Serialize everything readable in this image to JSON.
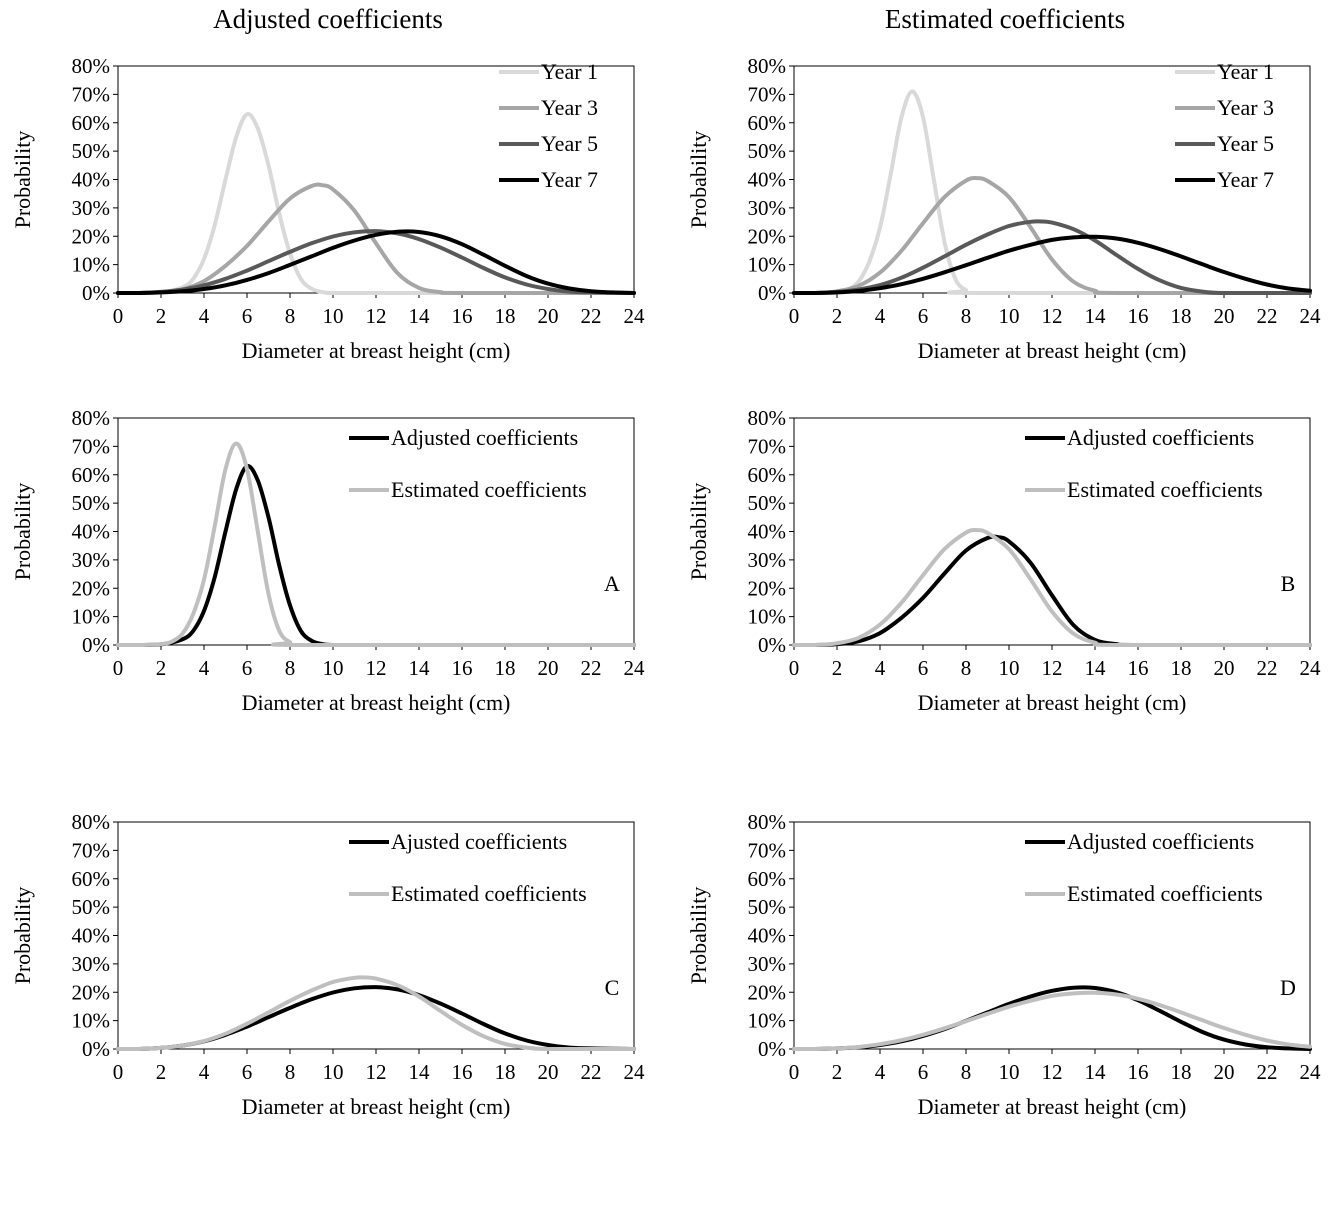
{
  "column_titles": [
    "Adjusted coefficients",
    "Estimated coefficients"
  ],
  "colors": {
    "year1": "#d9d9d9",
    "year3": "#a6a6a6",
    "year5": "#595959",
    "year7": "#000000",
    "adjusted": "#000000",
    "estimated": "#bfbfbf"
  },
  "chart_data": [
    {
      "type": "line",
      "panel": "top-left",
      "xlabel": "Diameter at breast height (cm)",
      "ylabel": "Probability",
      "xlim": [
        0,
        24
      ],
      "ylim": [
        0,
        80
      ],
      "xticks": [
        "0",
        "2",
        "4",
        "6",
        "8",
        "10",
        "12",
        "14",
        "16",
        "18",
        "20",
        "22",
        "24"
      ],
      "yticks": [
        "0%",
        "10%",
        "20%",
        "30%",
        "40%",
        "50%",
        "60%",
        "70%",
        "80%"
      ],
      "legend_position": "top-right",
      "corner_label": "",
      "series": [
        {
          "name": "Year 1",
          "color_key": "year1",
          "x": [
            0,
            1,
            2,
            3,
            3.5,
            4,
            4.5,
            5,
            5.5,
            6,
            6.5,
            7,
            7.5,
            8,
            8.5,
            9,
            9.5,
            10,
            11,
            24
          ],
          "y": [
            0,
            0,
            0.2,
            2,
            5,
            12,
            24,
            40,
            55,
            63,
            58,
            45,
            28,
            14,
            5,
            1.5,
            0.3,
            0,
            0,
            0
          ]
        },
        {
          "name": "Year 3",
          "color_key": "year3",
          "x": [
            0,
            1,
            2,
            3,
            4,
            5,
            6,
            7,
            8,
            9,
            9.5,
            10,
            11,
            12,
            13,
            14,
            15,
            16,
            24
          ],
          "y": [
            0,
            0,
            0.3,
            1.3,
            4.2,
            9.6,
            16.6,
            25.2,
            33.3,
            37.7,
            38,
            36.5,
            29,
            17.5,
            7,
            1.8,
            0.3,
            0,
            0
          ]
        },
        {
          "name": "Year 5",
          "color_key": "year5",
          "x": [
            0,
            1,
            2,
            3,
            4,
            5,
            6,
            7,
            8,
            9,
            10,
            11,
            12,
            13,
            14,
            15,
            16,
            17,
            18,
            19,
            20,
            21,
            22,
            24
          ],
          "y": [
            0,
            0,
            0.4,
            1.2,
            2.7,
            5,
            7.9,
            11.2,
            14.5,
            17.5,
            19.9,
            21.4,
            21.8,
            21,
            19,
            16,
            12.5,
            8.8,
            5.5,
            3,
            1.4,
            0.5,
            0.2,
            0
          ]
        },
        {
          "name": "Year 7",
          "color_key": "year7",
          "x": [
            0,
            1,
            2,
            3,
            4,
            5,
            6,
            7,
            8,
            9,
            10,
            11,
            12,
            13,
            14,
            15,
            16,
            17,
            18,
            19,
            20,
            21,
            22,
            23,
            24
          ],
          "y": [
            0,
            0,
            0.2,
            0.6,
            1.4,
            2.7,
            4.6,
            7,
            9.9,
            12.9,
            15.9,
            18.5,
            20.5,
            21.6,
            21.5,
            20,
            17.2,
            13.5,
            9.6,
            6,
            3.3,
            1.6,
            0.6,
            0.2,
            0
          ]
        }
      ]
    },
    {
      "type": "line",
      "panel": "top-right",
      "xlabel": "Diameter at breast height (cm)",
      "ylabel": "Probability",
      "xlim": [
        0,
        24
      ],
      "ylim": [
        0,
        80
      ],
      "xticks": [
        "0",
        "2",
        "4",
        "6",
        "8",
        "10",
        "12",
        "14",
        "16",
        "18",
        "20",
        "22",
        "24"
      ],
      "yticks": [
        "0%",
        "10%",
        "20%",
        "30%",
        "40%",
        "50%",
        "60%",
        "70%",
        "80%"
      ],
      "legend_position": "top-right",
      "corner_label": "",
      "series": [
        {
          "name": "Year 1",
          "color_key": "year1",
          "x": [
            0,
            1,
            2,
            2.5,
            3,
            3.5,
            4,
            4.5,
            5,
            5.5,
            6,
            6.5,
            7,
            7.5,
            8,
            8.5,
            24
          ],
          "y": [
            0,
            0,
            0.3,
            1.2,
            4,
            11,
            23,
            42,
            62,
            71,
            62,
            40,
            18,
            5,
            1,
            0,
            0
          ]
        },
        {
          "name": "Year 3",
          "color_key": "year3",
          "x": [
            0,
            1,
            2,
            3,
            4,
            5,
            6,
            7,
            8,
            8.5,
            9,
            10,
            11,
            12,
            13,
            14,
            15,
            24
          ],
          "y": [
            0,
            0,
            0.6,
            2.5,
            7.2,
            14.9,
            24.6,
            33.8,
            39.6,
            40.5,
            39.5,
            33.8,
            23.2,
            11.8,
            4,
            0.8,
            0,
            0
          ]
        },
        {
          "name": "Year 5",
          "color_key": "year5",
          "x": [
            0,
            1,
            2,
            3,
            4,
            5,
            6,
            7,
            8,
            9,
            10,
            11,
            11.5,
            12,
            13,
            14,
            15,
            16,
            17,
            18,
            19,
            20,
            24
          ],
          "y": [
            0,
            0,
            0.4,
            1.2,
            2.8,
            5.4,
            8.9,
            12.9,
            17,
            20.6,
            23.6,
            25.1,
            25.2,
            24.8,
            22.5,
            18.5,
            13.4,
            8.5,
            4.5,
            1.8,
            0.5,
            0,
            0
          ]
        },
        {
          "name": "Year 7",
          "color_key": "year7",
          "x": [
            0,
            1,
            2,
            3,
            4,
            5,
            6,
            7,
            8,
            9,
            10,
            11,
            12,
            13,
            14,
            15,
            16,
            17,
            18,
            19,
            20,
            21,
            22,
            23,
            24
          ],
          "y": [
            0,
            0,
            0.2,
            0.7,
            1.7,
            3.1,
            5,
            7.3,
            9.8,
            12.4,
            14.9,
            17,
            18.7,
            19.6,
            19.8,
            19.2,
            17.7,
            15.5,
            12.9,
            10.1,
            7.4,
            5,
            3,
            1.6,
            0.8
          ]
        }
      ]
    },
    {
      "type": "line",
      "panel": "middle-left",
      "xlabel": "Diameter at breast height (cm)",
      "ylabel": "Probability",
      "xlim": [
        0,
        24
      ],
      "ylim": [
        0,
        80
      ],
      "xticks": [
        "0",
        "2",
        "4",
        "6",
        "8",
        "10",
        "12",
        "14",
        "16",
        "18",
        "20",
        "22",
        "24"
      ],
      "yticks": [
        "0%",
        "10%",
        "20%",
        "30%",
        "40%",
        "50%",
        "60%",
        "70%",
        "80%"
      ],
      "legend_position": "top-right",
      "corner_label": "A",
      "series": [
        {
          "name": "Adjusted coefficients",
          "color_key": "adjusted",
          "x": [
            0,
            1,
            2,
            3,
            3.5,
            4,
            4.5,
            5,
            5.5,
            6,
            6.5,
            7,
            7.5,
            8,
            8.5,
            9,
            9.5,
            10,
            11,
            24
          ],
          "y": [
            0,
            0,
            0.2,
            2,
            5,
            12,
            24,
            40,
            55,
            63,
            58,
            45,
            28,
            14,
            5,
            1.5,
            0.3,
            0,
            0,
            0
          ]
        },
        {
          "name": "Estimated coefficients",
          "color_key": "estimated",
          "x": [
            0,
            1,
            2,
            2.5,
            3,
            3.5,
            4,
            4.5,
            5,
            5.5,
            6,
            6.5,
            7,
            7.5,
            8,
            8.5,
            24
          ],
          "y": [
            0,
            0,
            0.3,
            1.2,
            4,
            11,
            23,
            42,
            62,
            71,
            62,
            40,
            18,
            5,
            1,
            0,
            0
          ]
        }
      ]
    },
    {
      "type": "line",
      "panel": "middle-right",
      "xlabel": "Diameter at breast height (cm)",
      "ylabel": "Probability",
      "xlim": [
        0,
        24
      ],
      "ylim": [
        0,
        80
      ],
      "xticks": [
        "0",
        "2",
        "4",
        "6",
        "8",
        "10",
        "12",
        "14",
        "16",
        "18",
        "20",
        "22",
        "24"
      ],
      "yticks": [
        "0%",
        "10%",
        "20%",
        "30%",
        "40%",
        "50%",
        "60%",
        "70%",
        "80%"
      ],
      "legend_position": "top-right",
      "corner_label": "B",
      "series": [
        {
          "name": "Adjusted coefficients",
          "color_key": "adjusted",
          "x": [
            0,
            1,
            2,
            3,
            4,
            5,
            6,
            7,
            8,
            9,
            9.5,
            10,
            11,
            12,
            13,
            14,
            15,
            16,
            24
          ],
          "y": [
            0,
            0,
            0.3,
            1.3,
            4.2,
            9.6,
            16.6,
            25.2,
            33.3,
            37.7,
            38,
            36.5,
            29,
            17.5,
            7,
            1.8,
            0.3,
            0,
            0
          ]
        },
        {
          "name": "Estimated coefficients",
          "color_key": "estimated",
          "x": [
            0,
            1,
            2,
            3,
            4,
            5,
            6,
            7,
            8,
            8.5,
            9,
            10,
            11,
            12,
            13,
            14,
            15,
            24
          ],
          "y": [
            0,
            0,
            0.6,
            2.5,
            7.2,
            14.9,
            24.6,
            33.8,
            39.6,
            40.5,
            39.5,
            33.8,
            23.2,
            11.8,
            4,
            0.8,
            0,
            0
          ]
        }
      ]
    },
    {
      "type": "line",
      "panel": "bottom-left",
      "xlabel": "Diameter at breast height (cm)",
      "ylabel": "Probability",
      "xlim": [
        0,
        24
      ],
      "ylim": [
        0,
        80
      ],
      "xticks": [
        "0",
        "2",
        "4",
        "6",
        "8",
        "10",
        "12",
        "14",
        "16",
        "18",
        "20",
        "22",
        "24"
      ],
      "yticks": [
        "0%",
        "10%",
        "20%",
        "30%",
        "40%",
        "50%",
        "60%",
        "70%",
        "80%"
      ],
      "legend_position": "top-right",
      "corner_label": "C",
      "series": [
        {
          "name": "Ajusted coefficients",
          "color_key": "adjusted",
          "x": [
            0,
            1,
            2,
            3,
            4,
            5,
            6,
            7,
            8,
            9,
            10,
            11,
            12,
            13,
            14,
            15,
            16,
            17,
            18,
            19,
            20,
            21,
            22,
            24
          ],
          "y": [
            0,
            0,
            0.4,
            1.2,
            2.7,
            5,
            7.9,
            11.2,
            14.5,
            17.5,
            19.9,
            21.4,
            21.8,
            21,
            19,
            16,
            12.5,
            8.8,
            5.5,
            3,
            1.4,
            0.5,
            0.2,
            0
          ]
        },
        {
          "name": "Estimated coefficients",
          "color_key": "estimated",
          "x": [
            0,
            1,
            2,
            3,
            4,
            5,
            6,
            7,
            8,
            9,
            10,
            11,
            11.5,
            12,
            13,
            14,
            15,
            16,
            17,
            18,
            19,
            20,
            24
          ],
          "y": [
            0,
            0,
            0.4,
            1.2,
            2.8,
            5.4,
            8.9,
            12.9,
            17,
            20.6,
            23.6,
            25.1,
            25.2,
            24.8,
            22.5,
            18.5,
            13.4,
            8.5,
            4.5,
            1.8,
            0.5,
            0,
            0
          ]
        }
      ]
    },
    {
      "type": "line",
      "panel": "bottom-right",
      "xlabel": "Diameter at breast height (cm)",
      "ylabel": "Probability",
      "xlim": [
        0,
        24
      ],
      "ylim": [
        0,
        80
      ],
      "xticks": [
        "0",
        "2",
        "4",
        "6",
        "8",
        "10",
        "12",
        "14",
        "16",
        "18",
        "20",
        "22",
        "24"
      ],
      "yticks": [
        "0%",
        "10%",
        "20%",
        "30%",
        "40%",
        "50%",
        "60%",
        "70%",
        "80%"
      ],
      "legend_position": "top-right",
      "corner_label": "D",
      "series": [
        {
          "name": "Adjusted coefficients",
          "color_key": "adjusted",
          "x": [
            0,
            1,
            2,
            3,
            4,
            5,
            6,
            7,
            8,
            9,
            10,
            11,
            12,
            13,
            14,
            15,
            16,
            17,
            18,
            19,
            20,
            21,
            22,
            23,
            24
          ],
          "y": [
            0,
            0,
            0.2,
            0.6,
            1.4,
            2.7,
            4.6,
            7,
            9.9,
            12.9,
            15.9,
            18.5,
            20.5,
            21.6,
            21.5,
            20,
            17.2,
            13.5,
            9.6,
            6,
            3.3,
            1.6,
            0.6,
            0.2,
            0
          ]
        },
        {
          "name": "Estimated coefficients",
          "color_key": "estimated",
          "x": [
            0,
            1,
            2,
            3,
            4,
            5,
            6,
            7,
            8,
            9,
            10,
            11,
            12,
            13,
            14,
            15,
            16,
            17,
            18,
            19,
            20,
            21,
            22,
            23,
            24
          ],
          "y": [
            0,
            0,
            0.2,
            0.7,
            1.7,
            3.1,
            5,
            7.3,
            9.8,
            12.4,
            14.9,
            17,
            18.7,
            19.6,
            19.8,
            19.2,
            17.7,
            15.5,
            12.9,
            10.1,
            7.4,
            5,
            3,
            1.6,
            0.8
          ]
        }
      ]
    }
  ]
}
